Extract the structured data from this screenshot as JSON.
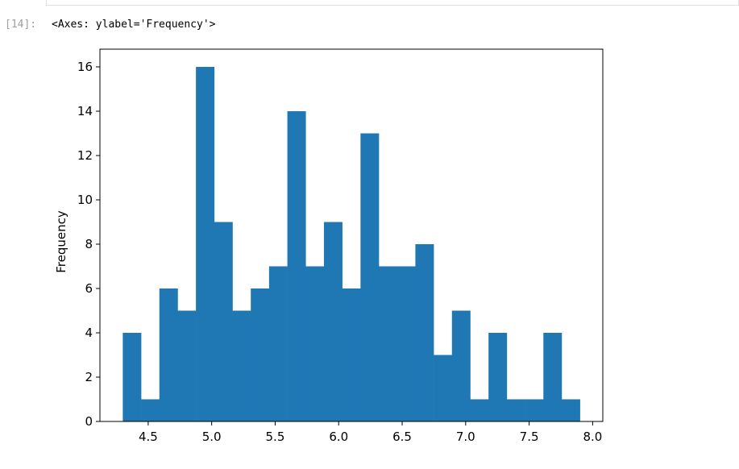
{
  "cell": {
    "prompt": "[14]:",
    "output_text": "<Axes: ylabel='Frequency'>"
  },
  "chart_data": {
    "type": "bar",
    "subtype": "histogram",
    "bar_color": "#1f77b4",
    "ylabel": "Frequency",
    "xlabel": "",
    "title": "",
    "xlim": [
      4.12,
      8.08
    ],
    "ylim": [
      0,
      16.8
    ],
    "xticks": [
      4.5,
      5.0,
      5.5,
      6.0,
      6.5,
      7.0,
      7.5,
      8.0
    ],
    "xtick_labels": [
      "4.5",
      "5.0",
      "5.5",
      "6.0",
      "6.5",
      "7.0",
      "7.5",
      "8.0"
    ],
    "yticks": [
      0,
      2,
      4,
      6,
      8,
      10,
      12,
      14,
      16
    ],
    "ytick_labels": [
      "0",
      "2",
      "4",
      "6",
      "8",
      "10",
      "12",
      "14",
      "16"
    ],
    "bin_start": 4.3,
    "bin_end": 7.9,
    "bins": 25,
    "values": [
      4,
      1,
      6,
      5,
      16,
      9,
      5,
      6,
      7,
      14,
      7,
      9,
      6,
      13,
      7,
      7,
      8,
      3,
      5,
      1,
      4,
      1,
      1,
      4,
      1
    ],
    "grid": false,
    "legend": "none"
  }
}
